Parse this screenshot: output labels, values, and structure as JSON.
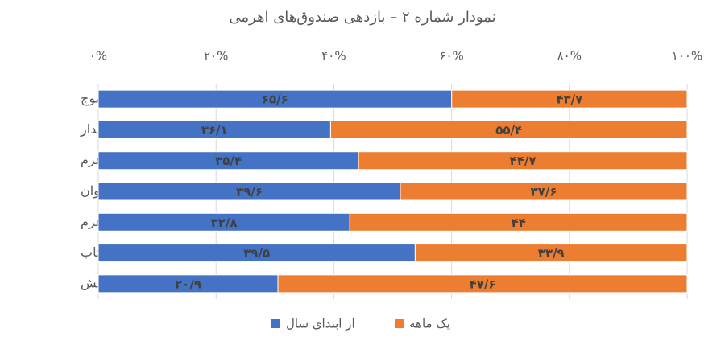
{
  "chart_data": {
    "type": "bar",
    "orientation": "horizontal",
    "stack": "percent",
    "title": "نمودار شماره ۲ – بازدهی صندوق‌های اهرمی",
    "categories": [
      "موج",
      "بیدار",
      "نارنج اهرم",
      "توان",
      "اهرم",
      "شتاب",
      "جهش"
    ],
    "series": [
      {
        "name": "از ابتدای سال",
        "color": "#4472c4",
        "values": [
          65.6,
          36.1,
          35.4,
          39.6,
          32.8,
          39.5,
          20.9
        ],
        "value_labels": [
          "۶۵/۶",
          "۳۶/۱",
          "۳۵/۴",
          "۳۹/۶",
          "۳۲/۸",
          "۳۹/۵",
          "۲۰/۹"
        ]
      },
      {
        "name": "یک ماهه",
        "color": "#ed7d31",
        "values": [
          43.7,
          55.4,
          44.7,
          37.6,
          44,
          33.9,
          47.6
        ],
        "value_labels": [
          "۴۳/۷",
          "۵۵/۴",
          "۴۴/۷",
          "۳۷/۶",
          "۴۴",
          "۳۳/۹",
          "۴۷/۶"
        ]
      }
    ],
    "xlim": [
      0,
      100
    ],
    "xticks": [
      {
        "value": 0,
        "label": "۰%"
      },
      {
        "value": 20,
        "label": "۲۰%"
      },
      {
        "value": 40,
        "label": "۴۰%"
      },
      {
        "value": 60,
        "label": "۶۰%"
      },
      {
        "value": 80,
        "label": "۸۰%"
      },
      {
        "value": 100,
        "label": "۱۰۰%"
      }
    ],
    "grid": true,
    "legend": "bottom"
  }
}
